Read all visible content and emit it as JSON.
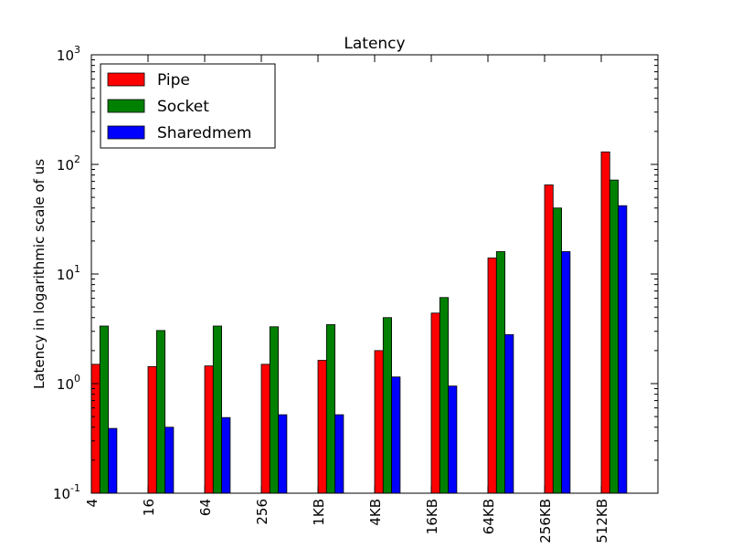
{
  "chart_data": {
    "type": "bar",
    "title": "Latency",
    "xlabel": "",
    "ylabel": "Latency in logarithmic scale of us",
    "yscale": "log",
    "ylim": [
      0.1,
      1000
    ],
    "ytick_labels": [
      {
        "base": "10",
        "exp": "-1"
      },
      {
        "base": "10",
        "exp": "0"
      },
      {
        "base": "10",
        "exp": "1"
      },
      {
        "base": "10",
        "exp": "2"
      },
      {
        "base": "10",
        "exp": "3"
      }
    ],
    "categories": [
      "4",
      "16",
      "64",
      "256",
      "1KB",
      "4KB",
      "16KB",
      "64KB",
      "256KB",
      "512KB"
    ],
    "series": [
      {
        "name": "Pipe",
        "color": "#ff0000",
        "values": [
          1.5,
          1.43,
          1.45,
          1.5,
          1.63,
          2.0,
          4.4,
          14,
          65,
          130
        ]
      },
      {
        "name": "Socket",
        "color": "#008000",
        "values": [
          3.35,
          3.05,
          3.35,
          3.3,
          3.45,
          4.0,
          6.1,
          16,
          40,
          72
        ]
      },
      {
        "name": "Sharedmem",
        "color": "#0000ff",
        "values": [
          0.39,
          0.4,
          0.49,
          0.52,
          0.52,
          1.15,
          0.95,
          2.8,
          16,
          42
        ]
      }
    ],
    "legend": "top-left",
    "grid": false
  }
}
